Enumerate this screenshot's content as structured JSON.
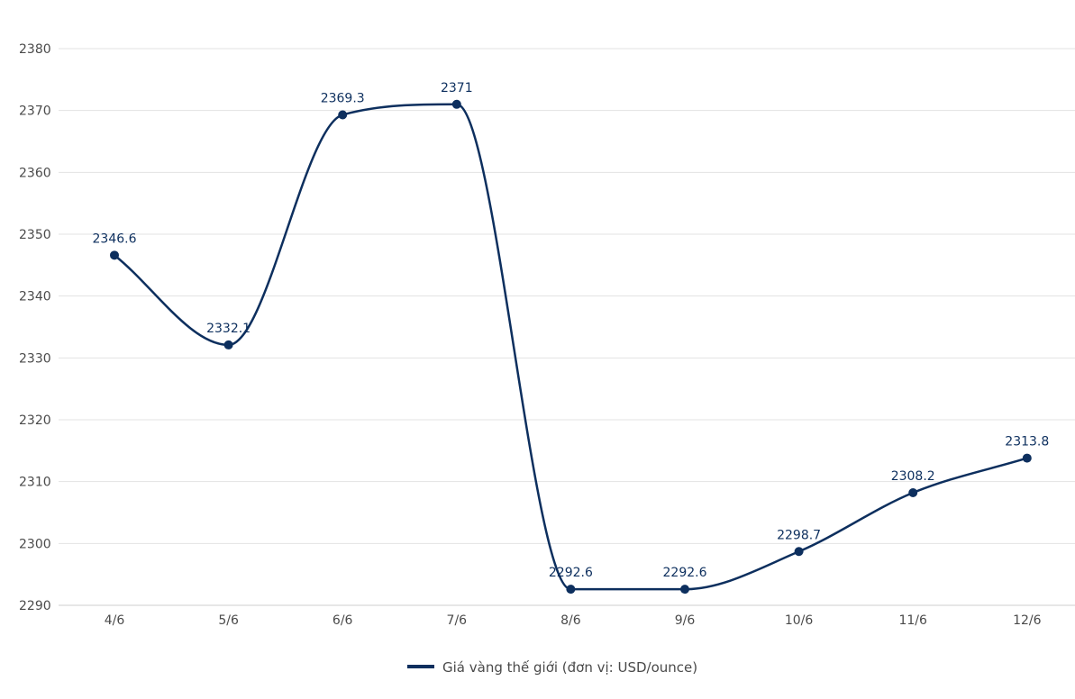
{
  "chart_data": {
    "type": "line",
    "categories": [
      "4/6",
      "5/6",
      "6/6",
      "7/6",
      "8/6",
      "9/6",
      "10/6",
      "11/6",
      "12/6"
    ],
    "series": [
      {
        "name": "Giá vàng thế giới (đơn vị: USD/ounce)",
        "values": [
          2346.6,
          2332.1,
          2369.3,
          2371,
          2292.6,
          2292.6,
          2298.7,
          2308.2,
          2313.8
        ],
        "value_labels": [
          "2346.6",
          "2332.1",
          "2369.3",
          "2371",
          "2292.6",
          "2292.6",
          "2298.7",
          "2308.2",
          "2313.8"
        ]
      }
    ],
    "ylim": [
      2290,
      2380
    ],
    "yticks": [
      2290,
      2300,
      2310,
      2320,
      2330,
      2340,
      2350,
      2360,
      2370,
      2380
    ],
    "grid": true,
    "legend_position": "bottom-center",
    "line_color": "#0d2f5e",
    "title": "",
    "xlabel": "",
    "ylabel": ""
  }
}
